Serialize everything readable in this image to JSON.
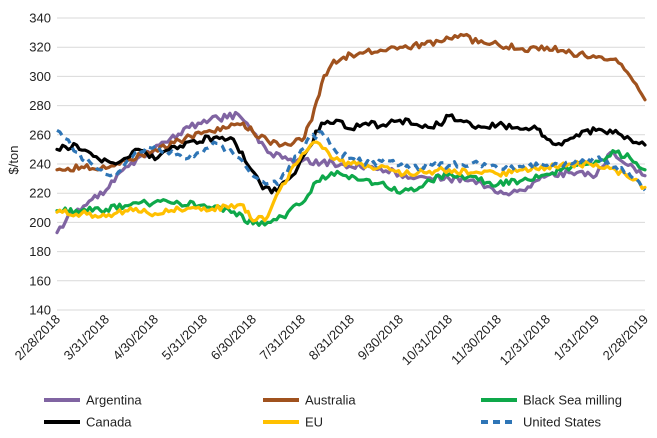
{
  "chart_data": {
    "type": "line",
    "title": "",
    "xlabel": "",
    "ylabel": "$/ton",
    "ylim": [
      140,
      340
    ],
    "yticks": [
      140,
      160,
      180,
      200,
      220,
      240,
      260,
      280,
      300,
      320,
      340
    ],
    "grid": "horizontal",
    "legend_position": "bottom",
    "x_tick_labels": [
      "2/28/2018",
      "3/31/2018",
      "4/30/2018",
      "5/31/2018",
      "6/30/2018",
      "7/31/2018",
      "8/31/2018",
      "9/30/2018",
      "10/31/2018",
      "11/30/2018",
      "12/31/2018",
      "1/31/2019",
      "2/28/2019"
    ],
    "x_month_index": [
      0,
      1,
      2,
      3,
      4,
      5,
      6,
      7,
      8,
      9,
      10,
      11,
      12
    ],
    "series": [
      {
        "name": "Argentina",
        "color": "#8064a2",
        "dash": "solid",
        "x": [
          0,
          0.3,
          0.6,
          1.0,
          1.4,
          1.8,
          2.2,
          2.7,
          3.0,
          3.3,
          3.7,
          4.0,
          4.3,
          4.6,
          5.0,
          5.4,
          5.8,
          6.2,
          6.6,
          7.0,
          7.5,
          8.0,
          8.5,
          9.0,
          9.5,
          10.0,
          10.5,
          11.0,
          11.3,
          11.6,
          12.0
        ],
        "values": [
          193,
          207,
          212,
          222,
          238,
          245,
          255,
          265,
          270,
          271,
          274,
          262,
          248,
          244,
          242,
          241,
          240,
          238,
          237,
          233,
          231,
          230,
          229,
          220,
          222,
          232,
          234,
          232,
          248,
          240,
          232
        ]
      },
      {
        "name": "Australia",
        "color": "#a0521e",
        "dash": "solid",
        "x": [
          0,
          0.5,
          1.0,
          1.5,
          2.0,
          2.5,
          3.0,
          3.5,
          3.8,
          4.0,
          4.3,
          4.6,
          5.0,
          5.2,
          5.4,
          5.6,
          5.8,
          6.0,
          6.3,
          6.6,
          7.0,
          7.5,
          7.8,
          8.0,
          8.3,
          8.6,
          9.0,
          9.5,
          10.0,
          10.5,
          11.0,
          11.4,
          11.7,
          12.0
        ],
        "values": [
          236,
          238,
          237,
          243,
          250,
          256,
          262,
          265,
          268,
          262,
          256,
          253,
          256,
          270,
          295,
          308,
          312,
          315,
          317,
          318,
          320,
          322,
          324,
          326,
          328,
          323,
          322,
          319,
          320,
          316,
          313,
          312,
          300,
          284
        ]
      },
      {
        "name": "Black Sea milling",
        "color": "#0ea84a",
        "dash": "solid",
        "x": [
          0,
          0.5,
          1.0,
          1.5,
          2.0,
          2.5,
          3.0,
          3.5,
          4.0,
          4.3,
          4.6,
          5.0,
          5.3,
          5.6,
          5.9,
          6.2,
          6.6,
          7.0,
          7.4,
          7.8,
          8.2,
          8.6,
          9.0,
          9.5,
          10.0,
          10.5,
          11.0,
          11.4,
          11.7,
          12.0
        ],
        "values": [
          208,
          208,
          209,
          212,
          214,
          213,
          212,
          209,
          199,
          200,
          204,
          213,
          228,
          234,
          232,
          229,
          227,
          220,
          224,
          232,
          232,
          229,
          226,
          229,
          233,
          238,
          242,
          248,
          244,
          236
        ]
      },
      {
        "name": "Canada",
        "color": "#000000",
        "dash": "solid",
        "x": [
          0,
          0.4,
          0.8,
          1.2,
          1.6,
          2.0,
          2.4,
          2.8,
          3.2,
          3.6,
          3.9,
          4.2,
          4.5,
          4.8,
          5.1,
          5.4,
          5.7,
          6.0,
          6.3,
          6.6,
          7.0,
          7.4,
          7.8,
          8.0,
          8.3,
          8.6,
          9.0,
          9.4,
          9.8,
          10.0,
          10.3,
          10.6,
          11.0,
          11.4,
          11.7,
          12.0
        ],
        "values": [
          250,
          253,
          245,
          240,
          250,
          243,
          252,
          256,
          258,
          257,
          239,
          223,
          221,
          232,
          249,
          268,
          270,
          264,
          268,
          266,
          270,
          266,
          267,
          273,
          269,
          266,
          267,
          265,
          264,
          257,
          253,
          260,
          263,
          263,
          257,
          253
        ]
      },
      {
        "name": "EU",
        "color": "#ffc000",
        "dash": "solid",
        "x": [
          0,
          0.5,
          1.0,
          1.5,
          2.0,
          2.5,
          3.0,
          3.5,
          3.8,
          4.0,
          4.3,
          4.6,
          5.0,
          5.3,
          5.6,
          6.0,
          6.4,
          6.8,
          7.2,
          7.6,
          8.0,
          8.5,
          9.0,
          9.5,
          10.0,
          10.5,
          11.0,
          11.4,
          11.7,
          12.0
        ],
        "values": [
          207,
          206,
          204,
          210,
          206,
          209,
          210,
          210,
          212,
          201,
          204,
          226,
          247,
          255,
          244,
          240,
          238,
          236,
          233,
          235,
          236,
          234,
          233,
          236,
          238,
          240,
          240,
          236,
          230,
          224
        ]
      },
      {
        "name": "United States",
        "color": "#2e75b6",
        "dash": "dashed",
        "x": [
          0,
          0.4,
          0.8,
          1.2,
          1.6,
          2.0,
          2.4,
          2.8,
          3.2,
          3.6,
          3.9,
          4.2,
          4.5,
          4.8,
          5.1,
          5.4,
          5.7,
          6.0,
          6.4,
          6.8,
          7.2,
          7.6,
          8.0,
          8.5,
          9.0,
          9.5,
          10.0,
          10.5,
          11.0,
          11.4,
          11.7,
          12.0
        ],
        "values": [
          263,
          248,
          237,
          232,
          248,
          252,
          246,
          245,
          255,
          247,
          236,
          228,
          226,
          240,
          256,
          262,
          248,
          244,
          240,
          242,
          237,
          240,
          239,
          241,
          237,
          238,
          239,
          240,
          244,
          238,
          232,
          222
        ]
      }
    ]
  },
  "legend": {
    "items": [
      {
        "label": "Argentina",
        "color": "#8064a2",
        "dash": "solid"
      },
      {
        "label": "Australia",
        "color": "#a0521e",
        "dash": "solid"
      },
      {
        "label": "Black Sea milling",
        "color": "#0ea84a",
        "dash": "solid"
      },
      {
        "label": "Canada",
        "color": "#000000",
        "dash": "solid"
      },
      {
        "label": "EU",
        "color": "#ffc000",
        "dash": "solid"
      },
      {
        "label": "United States",
        "color": "#2e75b6",
        "dash": "dashed"
      }
    ]
  }
}
